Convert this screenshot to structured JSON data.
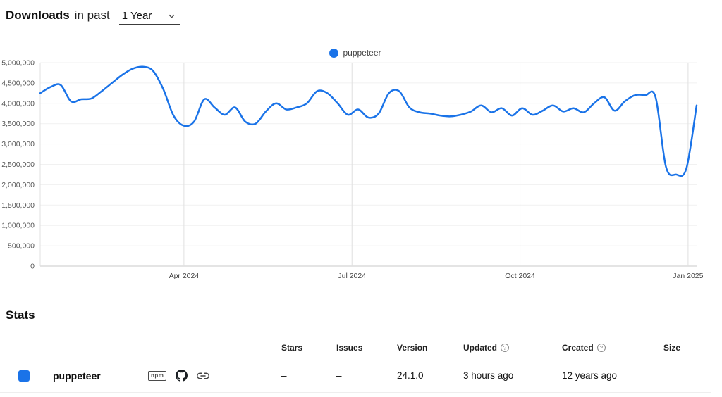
{
  "header": {
    "title_bold": "Downloads",
    "title_rest": "in past",
    "period_select": {
      "value": "1 Year"
    }
  },
  "icons": {
    "npm_badge": "npm",
    "help_glyph": "?"
  },
  "chart_data": {
    "type": "line",
    "title": "Downloads in past 1 Year",
    "xlabel": "",
    "ylabel": "",
    "ylim": [
      0,
      5000000
    ],
    "y_tick_step": 500000,
    "grid": true,
    "legend_position": "top",
    "x_ticks": [
      {
        "label": "Apr 2024",
        "pos": 0.219
      },
      {
        "label": "Jul 2024",
        "pos": 0.475
      },
      {
        "label": "Oct 2024",
        "pos": 0.731
      },
      {
        "label": "Jan 2025",
        "pos": 0.987
      }
    ],
    "series": [
      {
        "name": "puppeteer",
        "color": "#1a73e8",
        "values": [
          4250000,
          4400000,
          4450000,
          4050000,
          4100000,
          4120000,
          4300000,
          4500000,
          4700000,
          4850000,
          4900000,
          4800000,
          4350000,
          3700000,
          3450000,
          3550000,
          4100000,
          3900000,
          3720000,
          3900000,
          3550000,
          3500000,
          3800000,
          4000000,
          3850000,
          3900000,
          4000000,
          4300000,
          4250000,
          4000000,
          3720000,
          3850000,
          3650000,
          3750000,
          4250000,
          4300000,
          3900000,
          3780000,
          3750000,
          3700000,
          3680000,
          3720000,
          3800000,
          3950000,
          3780000,
          3880000,
          3700000,
          3880000,
          3720000,
          3820000,
          3950000,
          3800000,
          3880000,
          3780000,
          4000000,
          4150000,
          3820000,
          4050000,
          4200000,
          4200000,
          4150000,
          2450000,
          2250000,
          2400000,
          3950000
        ]
      }
    ]
  },
  "stats": {
    "heading": "Stats",
    "columns": [
      {
        "label": "Stars"
      },
      {
        "label": "Issues"
      },
      {
        "label": "Version"
      },
      {
        "label": "Updated",
        "help": true
      },
      {
        "label": "Created",
        "help": true
      },
      {
        "label": "Size"
      }
    ],
    "rows": [
      {
        "name": "puppeteer",
        "color": "#1a73e8",
        "stars": "–",
        "issues": "–",
        "version": "24.1.0",
        "updated": "3 hours ago",
        "created": "12 years ago",
        "size": ""
      }
    ]
  }
}
